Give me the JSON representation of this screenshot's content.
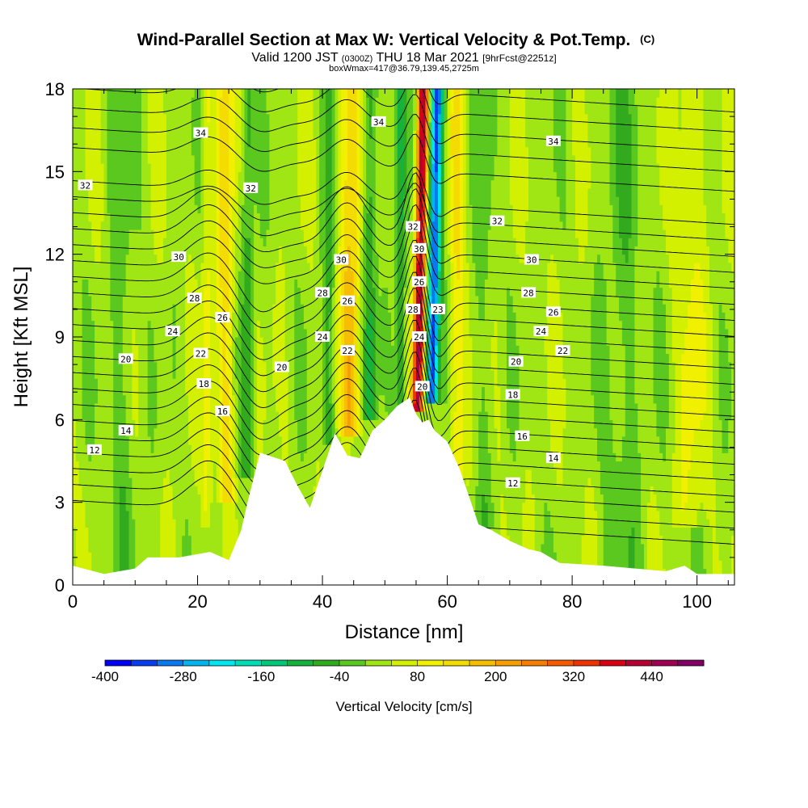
{
  "chart_data": {
    "type": "heatmap",
    "title": "Wind-Parallel Section at Max W: Vertical Velocity & Pot.Temp.",
    "title_units": "(C)",
    "subtitle_line1_part1": "Valid 1200 JST",
    "subtitle_line1_part2": "(0300Z)",
    "subtitle_line1_part3": "THU 18 Mar 2021",
    "subtitle_line1_part4": "[9hrFcst@2251z]",
    "subtitle_line2": "boxWmax=417@36.79,139.45,2725m",
    "xlabel": "Distance [nm]",
    "ylabel": "Height [Kft MSL]",
    "xlim": [
      0,
      106
    ],
    "ylim": [
      0,
      18
    ],
    "x_ticks": [
      0,
      20,
      40,
      60,
      80,
      100
    ],
    "y_ticks": [
      0,
      3,
      6,
      9,
      12,
      15,
      18
    ],
    "colorbar": {
      "label": "Vertical Velocity [cm/s]",
      "min": -400,
      "max": 500,
      "step": 40,
      "tick_values": [
        -400,
        -280,
        -160,
        -40,
        80,
        200,
        320,
        440
      ],
      "tick_labels": [
        "-400",
        "-280",
        "-160",
        "-40",
        "80",
        "200",
        "320",
        "440"
      ],
      "colors": [
        "#0000f5",
        "#0a3cf0",
        "#0a78f0",
        "#00b4f0",
        "#00e6f0",
        "#00dcb4",
        "#00c878",
        "#14b43c",
        "#32aa1e",
        "#5ac81e",
        "#a0e614",
        "#d2f000",
        "#f0f000",
        "#f5dc00",
        "#f5be00",
        "#f5a000",
        "#f57d00",
        "#f55a00",
        "#f03200",
        "#d70014",
        "#b40032",
        "#a00050",
        "#820064"
      ]
    },
    "terrain_profile": {
      "x": [
        0,
        5,
        10,
        12,
        17,
        22,
        25,
        27,
        28,
        30,
        34,
        36,
        38,
        42,
        44,
        46,
        48,
        50,
        52,
        54,
        55,
        56,
        57,
        58,
        60,
        62,
        65,
        67,
        70,
        73,
        75,
        78,
        85,
        90,
        95,
        98,
        100,
        106
      ],
      "height_kft": [
        0.7,
        0.4,
        0.6,
        1.0,
        1.0,
        1.2,
        0.9,
        2.0,
        3.0,
        4.8,
        4.5,
        3.6,
        2.8,
        5.5,
        4.7,
        4.6,
        5.6,
        6.0,
        6.5,
        6.8,
        6.2,
        5.9,
        6.0,
        5.6,
        5.2,
        4.2,
        2.2,
        2.0,
        1.6,
        1.3,
        1.2,
        0.8,
        0.7,
        0.6,
        0.5,
        0.7,
        0.4,
        0.4
      ]
    },
    "contour_labels": [
      {
        "text": "34",
        "x": 20.5,
        "y": 16.4
      },
      {
        "text": "34",
        "x": 49,
        "y": 16.8
      },
      {
        "text": "34",
        "x": 77,
        "y": 16.1
      },
      {
        "text": "32",
        "x": 2,
        "y": 14.5
      },
      {
        "text": "32",
        "x": 28.5,
        "y": 14.4
      },
      {
        "text": "32",
        "x": 54.5,
        "y": 13.0
      },
      {
        "text": "32",
        "x": 68,
        "y": 13.2
      },
      {
        "text": "30",
        "x": 17,
        "y": 11.9
      },
      {
        "text": "30",
        "x": 43,
        "y": 11.8
      },
      {
        "text": "30",
        "x": 55.5,
        "y": 12.2
      },
      {
        "text": "30",
        "x": 73.5,
        "y": 11.8
      },
      {
        "text": "28",
        "x": 19.5,
        "y": 10.4
      },
      {
        "text": "28",
        "x": 40,
        "y": 10.6
      },
      {
        "text": "28",
        "x": 54.5,
        "y": 10.0
      },
      {
        "text": "28",
        "x": 73,
        "y": 10.6
      },
      {
        "text": "26",
        "x": 24,
        "y": 9.7
      },
      {
        "text": "26",
        "x": 44,
        "y": 10.3
      },
      {
        "text": "26",
        "x": 55.5,
        "y": 11.0
      },
      {
        "text": "26",
        "x": 77,
        "y": 9.9
      },
      {
        "text": "24",
        "x": 16,
        "y": 9.2
      },
      {
        "text": "24",
        "x": 40,
        "y": 9.0
      },
      {
        "text": "24",
        "x": 55.5,
        "y": 9.0
      },
      {
        "text": "24",
        "x": 75,
        "y": 9.2
      },
      {
        "text": "23",
        "x": 58.5,
        "y": 10.0
      },
      {
        "text": "22",
        "x": 20.5,
        "y": 8.4
      },
      {
        "text": "22",
        "x": 44,
        "y": 8.5
      },
      {
        "text": "22",
        "x": 78.5,
        "y": 8.5
      },
      {
        "text": "20",
        "x": 8.5,
        "y": 8.2
      },
      {
        "text": "20",
        "x": 33.5,
        "y": 7.9
      },
      {
        "text": "20",
        "x": 56,
        "y": 7.2
      },
      {
        "text": "20",
        "x": 71,
        "y": 8.1
      },
      {
        "text": "18",
        "x": 21,
        "y": 7.3
      },
      {
        "text": "18",
        "x": 70.5,
        "y": 6.9
      },
      {
        "text": "16",
        "x": 24,
        "y": 6.3
      },
      {
        "text": "16",
        "x": 72,
        "y": 5.4
      },
      {
        "text": "14",
        "x": 8.5,
        "y": 5.6
      },
      {
        "text": "14",
        "x": 77,
        "y": 4.6
      },
      {
        "text": "12",
        "x": 3.5,
        "y": 4.9
      },
      {
        "text": "12",
        "x": 70.5,
        "y": 3.7
      }
    ]
  }
}
